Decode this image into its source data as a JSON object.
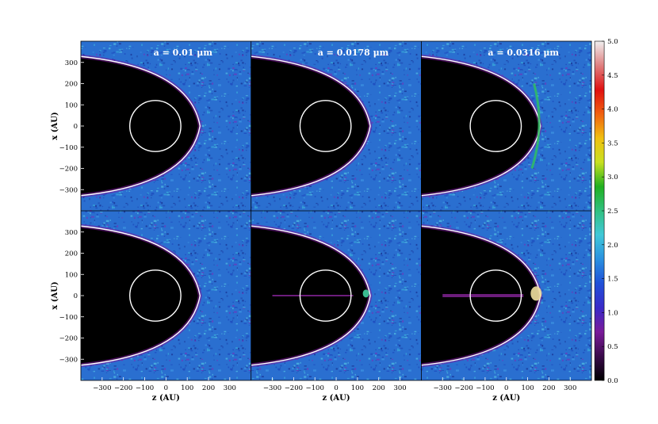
{
  "chart_data": {
    "type": "heatmap",
    "layout": "2x3 grid of density maps with shared colorbar",
    "panel_titles": [
      "a = 0.01 μm",
      "a = 0.0178 μm",
      "a = 0.0316 μm"
    ],
    "xlabel": "z (AU)",
    "ylabel": "x (AU)",
    "xlim": [
      -400,
      400
    ],
    "ylim": [
      -400,
      400
    ],
    "xticks": [
      -300,
      -200,
      -100,
      0,
      100,
      200,
      300
    ],
    "yticks": [
      300,
      200,
      100,
      0,
      -100,
      -200,
      -300
    ],
    "colorbar": {
      "min": 0.0,
      "max": 5.0,
      "ticks": [
        "5.0",
        "4.5",
        "4.0",
        "3.5",
        "3.0",
        "2.5",
        "2.0",
        "1.5",
        "1.0",
        "0.5",
        "0.0"
      ],
      "colormap": [
        "#000000",
        "#3a0a4a",
        "#7a1a9a",
        "#3a2ac8",
        "#2050d8",
        "#2a90e0",
        "#40c8d8",
        "#30c080",
        "#20b020",
        "#c8e020",
        "#f0c010",
        "#f06010",
        "#e01010",
        "#e08080",
        "#f0f0f0"
      ]
    },
    "overlays": {
      "inner_circle_center": [
        -50,
        0
      ],
      "inner_circle_radius": 120,
      "bow_apex_z": 160,
      "bow_wing_x_at_left": 330,
      "overlay_color": "#ffffff"
    },
    "background_level": 1.5,
    "grid": false
  }
}
